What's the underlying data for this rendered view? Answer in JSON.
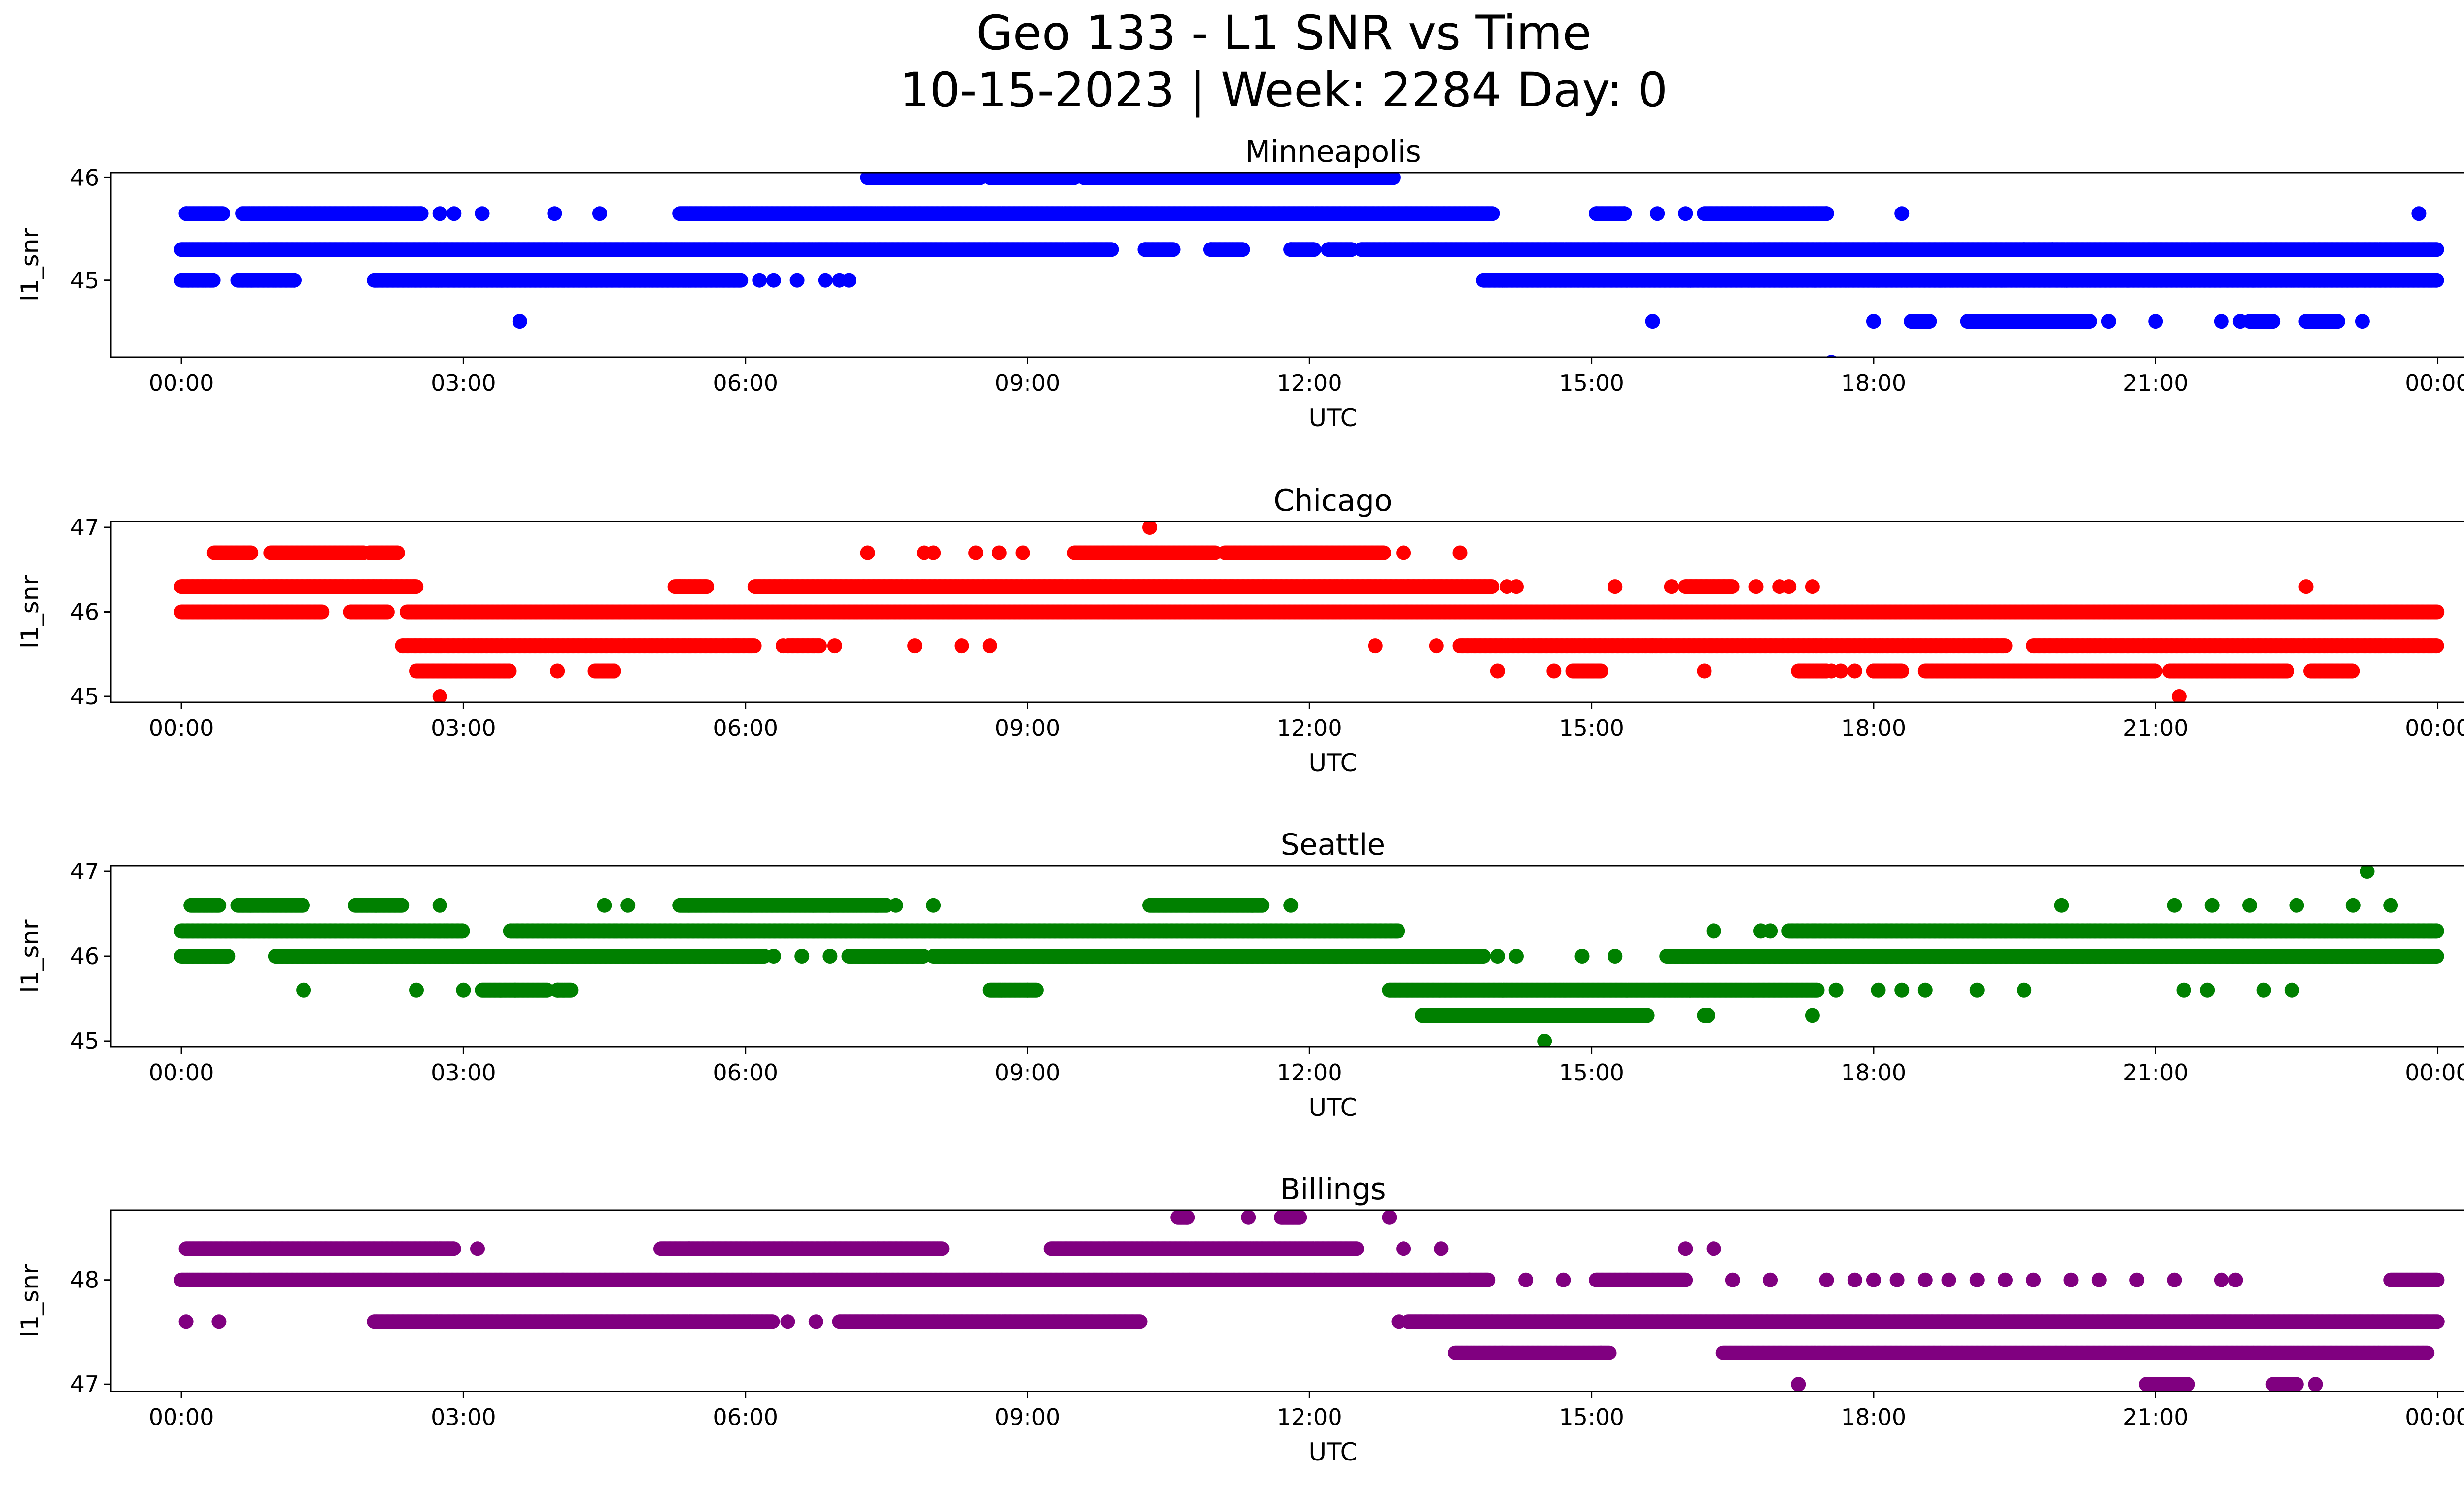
{
  "title": {
    "line1": "Geo 133 - L1 SNR vs Time",
    "line2": "10-15-2023 | Week: 2284 Day: 0"
  },
  "chart_data": [
    {
      "type": "scatter",
      "title": "Minneapolis",
      "xlabel": "UTC",
      "ylabel": "l1_snr",
      "color": "#0000ff",
      "xlim": [
        -0.75,
        25.25
      ],
      "ylim": [
        44.25,
        46.05
      ],
      "x_ticks": [
        0,
        3,
        6,
        9,
        12,
        15,
        18,
        21,
        24
      ],
      "x_tick_labels": [
        "00:00",
        "03:00",
        "06:00",
        "09:00",
        "12:00",
        "15:00",
        "18:00",
        "21:00",
        "00:00"
      ],
      "y_ticks": [
        45,
        46
      ],
      "y_tick_labels": [
        "45",
        "46"
      ],
      "bands": [
        {
          "y": 46.0,
          "segments": [
            [
              7.3,
              8.5
            ],
            [
              8.6,
              9.5
            ],
            [
              9.6,
              12.9
            ]
          ]
        },
        {
          "y": 45.65,
          "segments": [
            [
              0.05,
              0.45
            ],
            [
              0.65,
              2.55
            ],
            [
              5.3,
              13.95
            ],
            [
              15.05,
              15.35
            ],
            [
              16.2,
              17.5
            ]
          ]
        },
        {
          "y": 45.3,
          "segments": [
            [
              0,
              9.9
            ],
            [
              10.25,
              10.55
            ],
            [
              10.95,
              11.3
            ],
            [
              11.8,
              12.05
            ],
            [
              12.2,
              12.45
            ],
            [
              12.55,
              24
            ]
          ]
        },
        {
          "y": 45.0,
          "segments": [
            [
              0,
              0.35
            ],
            [
              0.6,
              1.2
            ],
            [
              2.05,
              5.95
            ],
            [
              13.85,
              24
            ]
          ]
        },
        {
          "y": 44.6,
          "segments": [
            [
              18.4,
              18.6
            ],
            [
              19.0,
              20.3
            ],
            [
              22.0,
              22.25
            ],
            [
              22.6,
              22.95
            ]
          ]
        }
      ],
      "points": [
        [
          0.05,
          45.65
        ],
        [
          1.2,
          45.0
        ],
        [
          2.55,
          45.65
        ],
        [
          2.75,
          45.65
        ],
        [
          2.9,
          45.65
        ],
        [
          3.2,
          45.65
        ],
        [
          3.6,
          44.6
        ],
        [
          3.97,
          45.65
        ],
        [
          4.45,
          45.65
        ],
        [
          6.15,
          45.0
        ],
        [
          6.3,
          45.0
        ],
        [
          6.55,
          45.0
        ],
        [
          6.85,
          45.0
        ],
        [
          7.0,
          45.0
        ],
        [
          7.1,
          45.0
        ],
        [
          10.25,
          45.3
        ],
        [
          10.95,
          45.3
        ],
        [
          11.8,
          45.3
        ],
        [
          12.2,
          45.3
        ],
        [
          15.05,
          45.65
        ],
        [
          15.35,
          45.65
        ],
        [
          15.65,
          44.6
        ],
        [
          15.7,
          45.65
        ],
        [
          16.0,
          45.65
        ],
        [
          17.5,
          45.65
        ],
        [
          17.55,
          44.2
        ],
        [
          18.0,
          44.6
        ],
        [
          18.3,
          45.65
        ],
        [
          19.6,
          45.3
        ],
        [
          19.9,
          45.3
        ],
        [
          20.5,
          44.6
        ],
        [
          21.0,
          44.6
        ],
        [
          21.7,
          44.6
        ],
        [
          21.9,
          44.6
        ],
        [
          22.6,
          44.6
        ],
        [
          23.2,
          44.6
        ],
        [
          23.8,
          45.65
        ]
      ]
    },
    {
      "type": "scatter",
      "title": "Chicago",
      "xlabel": "UTC",
      "ylabel": "l1_snr",
      "color": "#ff0000",
      "xlim": [
        -0.75,
        25.25
      ],
      "ylim": [
        44.93,
        47.07
      ],
      "x_ticks": [
        0,
        3,
        6,
        9,
        12,
        15,
        18,
        21,
        24
      ],
      "x_tick_labels": [
        "00:00",
        "03:00",
        "06:00",
        "09:00",
        "12:00",
        "15:00",
        "18:00",
        "21:00",
        "00:00"
      ],
      "y_ticks": [
        45,
        46,
        47
      ],
      "y_tick_labels": [
        "45",
        "46",
        "47"
      ],
      "bands": [
        {
          "y": 46.7,
          "segments": [
            [
              0.35,
              0.75
            ],
            [
              0.95,
              1.95
            ],
            [
              2.0,
              2.3
            ],
            [
              9.5,
              11.0
            ],
            [
              11.1,
              12.8
            ]
          ]
        },
        {
          "y": 46.3,
          "segments": [
            [
              0,
              2.5
            ],
            [
              5.25,
              5.6
            ],
            [
              6.1,
              13.95
            ],
            [
              16.0,
              16.5
            ]
          ]
        },
        {
          "y": 46.0,
          "segments": [
            [
              0,
              1.5
            ],
            [
              1.8,
              2.2
            ],
            [
              2.4,
              24
            ]
          ]
        },
        {
          "y": 45.6,
          "segments": [
            [
              2.35,
              6.1
            ],
            [
              6.45,
              6.8
            ],
            [
              13.6,
              19.4
            ],
            [
              19.7,
              24
            ]
          ]
        },
        {
          "y": 45.3,
          "segments": [
            [
              2.5,
              3.5
            ],
            [
              4.4,
              4.6
            ],
            [
              14.8,
              15.1
            ],
            [
              17.2,
              17.5
            ],
            [
              18.0,
              18.3
            ],
            [
              18.55,
              21.0
            ],
            [
              21.15,
              22.4
            ],
            [
              22.65,
              23.1
            ]
          ]
        }
      ],
      "points": [
        [
          2.75,
          45.0
        ],
        [
          4.0,
          45.3
        ],
        [
          4.5,
          45.3
        ],
        [
          4.6,
          45.3
        ],
        [
          5.3,
          46.3
        ],
        [
          5.9,
          45.6
        ],
        [
          6.4,
          45.6
        ],
        [
          6.95,
          45.6
        ],
        [
          7.3,
          46.7
        ],
        [
          7.8,
          45.6
        ],
        [
          7.9,
          46.7
        ],
        [
          8.0,
          46.7
        ],
        [
          8.3,
          45.6
        ],
        [
          8.45,
          46.7
        ],
        [
          8.6,
          45.6
        ],
        [
          8.7,
          46.7
        ],
        [
          8.95,
          46.7
        ],
        [
          10.0,
          46.0
        ],
        [
          10.3,
          47.0
        ],
        [
          12.7,
          45.6
        ],
        [
          13.0,
          46.7
        ],
        [
          13.05,
          46.3
        ],
        [
          13.35,
          45.6
        ],
        [
          13.6,
          46.7
        ],
        [
          14.0,
          45.3
        ],
        [
          14.1,
          46.3
        ],
        [
          14.2,
          46.3
        ],
        [
          14.6,
          45.3
        ],
        [
          15.0,
          45.3
        ],
        [
          15.25,
          46.3
        ],
        [
          15.65,
          45.6
        ],
        [
          15.85,
          46.3
        ],
        [
          16.2,
          45.3
        ],
        [
          16.75,
          46.3
        ],
        [
          17.0,
          46.3
        ],
        [
          17.1,
          46.3
        ],
        [
          17.35,
          46.3
        ],
        [
          17.55,
          45.3
        ],
        [
          17.65,
          45.3
        ],
        [
          17.8,
          45.3
        ],
        [
          18.0,
          45.3
        ],
        [
          21.25,
          45.0
        ],
        [
          22.6,
          46.3
        ],
        [
          22.85,
          45.3
        ]
      ]
    },
    {
      "type": "scatter",
      "title": "Seattle",
      "xlabel": "UTC",
      "ylabel": "l1_snr",
      "color": "#008000",
      "xlim": [
        -0.75,
        25.25
      ],
      "ylim": [
        44.93,
        47.07
      ],
      "x_ticks": [
        0,
        3,
        6,
        9,
        12,
        15,
        18,
        21,
        24
      ],
      "x_tick_labels": [
        "00:00",
        "03:00",
        "06:00",
        "09:00",
        "12:00",
        "15:00",
        "18:00",
        "21:00",
        "00:00"
      ],
      "y_ticks": [
        45,
        46,
        47
      ],
      "y_tick_labels": [
        "45",
        "46",
        "47"
      ],
      "bands": [
        {
          "y": 46.6,
          "segments": [
            [
              0.1,
              0.4
            ],
            [
              0.6,
              1.3
            ],
            [
              1.85,
              2.35
            ],
            [
              5.3,
              6.9
            ],
            [
              6.9,
              7.5
            ],
            [
              10.3,
              11.5
            ]
          ]
        },
        {
          "y": 46.3,
          "segments": [
            [
              0,
              3.0
            ],
            [
              3.5,
              12.95
            ],
            [
              17.1,
              24
            ]
          ]
        },
        {
          "y": 46.0,
          "segments": [
            [
              0,
              0.5
            ],
            [
              1.0,
              6.2
            ],
            [
              7.1,
              7.9
            ],
            [
              8.0,
              13.85
            ],
            [
              15.8,
              24
            ]
          ]
        },
        {
          "y": 45.6,
          "segments": [
            [
              3.2,
              3.9
            ],
            [
              4.0,
              4.15
            ],
            [
              8.6,
              9.1
            ],
            [
              12.85,
              17.4
            ]
          ]
        },
        {
          "y": 45.3,
          "segments": [
            [
              13.2,
              15.6
            ],
            [
              16.2,
              16.25
            ]
          ]
        }
      ],
      "points": [
        [
          1.3,
          45.6
        ],
        [
          2.5,
          45.6
        ],
        [
          2.75,
          46.6
        ],
        [
          3.0,
          45.6
        ],
        [
          3.55,
          45.6
        ],
        [
          4.0,
          45.6
        ],
        [
          4.5,
          46.6
        ],
        [
          4.75,
          46.6
        ],
        [
          6.3,
          46.0
        ],
        [
          6.6,
          46.0
        ],
        [
          6.9,
          46.0
        ],
        [
          7.25,
          46.0
        ],
        [
          7.6,
          46.6
        ],
        [
          8.0,
          46.6
        ],
        [
          9.0,
          45.6
        ],
        [
          11.8,
          46.6
        ],
        [
          14.0,
          46.0
        ],
        [
          14.2,
          46.0
        ],
        [
          14.5,
          45.0
        ],
        [
          14.9,
          46.0
        ],
        [
          15.25,
          46.0
        ],
        [
          16.3,
          46.3
        ],
        [
          16.8,
          46.3
        ],
        [
          16.9,
          46.3
        ],
        [
          17.35,
          45.3
        ],
        [
          17.6,
          45.6
        ],
        [
          18.05,
          45.6
        ],
        [
          18.3,
          45.6
        ],
        [
          18.55,
          45.6
        ],
        [
          19.1,
          45.6
        ],
        [
          19.6,
          45.6
        ],
        [
          20.0,
          46.6
        ],
        [
          21.2,
          46.6
        ],
        [
          21.6,
          46.6
        ],
        [
          21.3,
          45.6
        ],
        [
          21.55,
          45.6
        ],
        [
          22.0,
          46.6
        ],
        [
          22.15,
          45.6
        ],
        [
          22.45,
          45.6
        ],
        [
          22.5,
          46.6
        ],
        [
          23.1,
          46.6
        ],
        [
          23.25,
          47.0
        ],
        [
          23.5,
          46.6
        ]
      ]
    },
    {
      "type": "scatter",
      "title": "Billings",
      "xlabel": "UTC",
      "ylabel": "l1_snr",
      "color": "#800080",
      "xlim": [
        -0.75,
        25.25
      ],
      "ylim": [
        46.93,
        48.67
      ],
      "x_ticks": [
        0,
        3,
        6,
        9,
        12,
        15,
        18,
        21,
        24
      ],
      "x_tick_labels": [
        "00:00",
        "03:00",
        "06:00",
        "09:00",
        "12:00",
        "15:00",
        "18:00",
        "21:00",
        "00:00"
      ],
      "y_ticks": [
        47,
        48
      ],
      "y_tick_labels": [
        "47",
        "48"
      ],
      "bands": [
        {
          "y": 48.6,
          "segments": [
            [
              10.6,
              10.7
            ],
            [
              11.7,
              11.9
            ]
          ]
        },
        {
          "y": 48.3,
          "segments": [
            [
              0.05,
              2.9
            ],
            [
              5.1,
              8.1
            ],
            [
              9.25,
              12.5
            ]
          ]
        },
        {
          "y": 48.0,
          "segments": [
            [
              0,
              13.9
            ],
            [
              15.05,
              16.0
            ],
            [
              23.5,
              24
            ]
          ]
        },
        {
          "y": 47.6,
          "segments": [
            [
              2.05,
              6.3
            ],
            [
              7.0,
              10.2
            ],
            [
              13.05,
              24
            ]
          ]
        },
        {
          "y": 47.3,
          "segments": [
            [
              13.55,
              15.2
            ],
            [
              16.4,
              23.9
            ]
          ]
        },
        {
          "y": 47.0,
          "segments": [
            [
              20.9,
              21.35
            ],
            [
              22.25,
              22.5
            ]
          ]
        }
      ],
      "points": [
        [
          0.05,
          47.6
        ],
        [
          0.4,
          47.6
        ],
        [
          3.15,
          48.3
        ],
        [
          5.4,
          48.3
        ],
        [
          6.45,
          47.6
        ],
        [
          6.75,
          47.6
        ],
        [
          10.7,
          48.6
        ],
        [
          11.35,
          48.6
        ],
        [
          12.85,
          48.6
        ],
        [
          12.95,
          47.6
        ],
        [
          13.0,
          48.3
        ],
        [
          13.4,
          48.3
        ],
        [
          13.7,
          48.0
        ],
        [
          14.3,
          48.0
        ],
        [
          14.7,
          48.0
        ],
        [
          15.1,
          47.3
        ],
        [
          16.0,
          48.3
        ],
        [
          16.3,
          48.3
        ],
        [
          16.5,
          48.0
        ],
        [
          16.9,
          48.0
        ],
        [
          17.2,
          47.0
        ],
        [
          17.5,
          48.0
        ],
        [
          17.8,
          48.0
        ],
        [
          18.0,
          48.0
        ],
        [
          18.25,
          48.0
        ],
        [
          18.55,
          48.0
        ],
        [
          18.8,
          48.0
        ],
        [
          19.1,
          48.0
        ],
        [
          19.4,
          48.0
        ],
        [
          19.7,
          48.0
        ],
        [
          20.1,
          48.0
        ],
        [
          20.4,
          48.0
        ],
        [
          20.8,
          48.0
        ],
        [
          21.2,
          48.0
        ],
        [
          21.7,
          48.0
        ],
        [
          21.85,
          48.0
        ],
        [
          22.3,
          47.0
        ],
        [
          22.7,
          47.0
        ]
      ]
    }
  ]
}
